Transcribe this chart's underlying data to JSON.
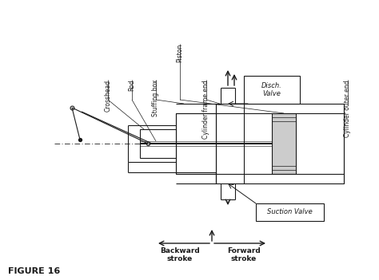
{
  "bg_color": "#ffffff",
  "line_color": "#1a1a1a",
  "text_color": "#1a1a1a",
  "labels": {
    "crosshead": "Crosshead",
    "rod": "Rod",
    "stuffing_box": "Stuffing box",
    "piston": "Piston",
    "cyl_frame_end": "Cylinder frame end",
    "cyl_outer_end": "Cylinder outer end",
    "disch_valve": "Disch.\nValve",
    "suction_valve": "Suction Valve",
    "backward_stroke": "Backward\nstroke",
    "forward_stroke": "Forward\nstroke",
    "figure": "FIGURE 16"
  }
}
